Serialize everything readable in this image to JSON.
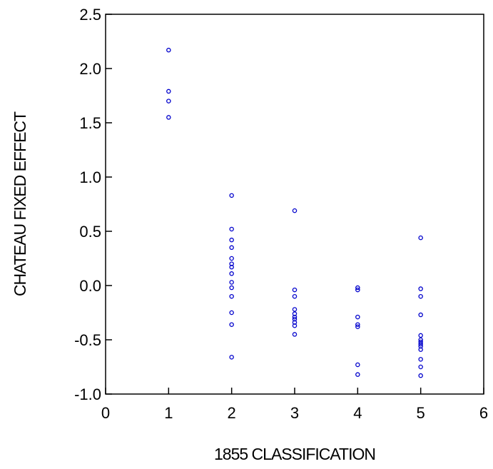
{
  "chart_data": {
    "type": "scatter",
    "title": "",
    "xlabel": "1855 CLASSIFICATION",
    "ylabel": "CHATEAU FIXED EFFECT",
    "xlim": [
      0,
      6
    ],
    "ylim": [
      -1.0,
      2.5
    ],
    "x_ticks": [
      "0",
      "1",
      "2",
      "3",
      "4",
      "5",
      "6"
    ],
    "y_ticks": [
      "-1.0",
      "-0.5",
      "0.0",
      "0.5",
      "1.0",
      "1.5",
      "2.0",
      "2.5"
    ],
    "grid": false,
    "legend": "none",
    "marker": "open-circle",
    "marker_color": "#0000cc",
    "points": [
      {
        "x": 1,
        "y": 2.17
      },
      {
        "x": 1,
        "y": 1.79
      },
      {
        "x": 1,
        "y": 1.7
      },
      {
        "x": 1,
        "y": 1.55
      },
      {
        "x": 2,
        "y": 0.83
      },
      {
        "x": 2,
        "y": 0.52
      },
      {
        "x": 2,
        "y": 0.42
      },
      {
        "x": 2,
        "y": 0.35
      },
      {
        "x": 2,
        "y": 0.25
      },
      {
        "x": 2,
        "y": 0.2
      },
      {
        "x": 2,
        "y": 0.17
      },
      {
        "x": 2,
        "y": 0.11
      },
      {
        "x": 2,
        "y": 0.03
      },
      {
        "x": 2,
        "y": -0.02
      },
      {
        "x": 2,
        "y": -0.1
      },
      {
        "x": 2,
        "y": -0.25
      },
      {
        "x": 2,
        "y": -0.36
      },
      {
        "x": 2,
        "y": -0.66
      },
      {
        "x": 3,
        "y": 0.69
      },
      {
        "x": 3,
        "y": -0.04
      },
      {
        "x": 3,
        "y": -0.1
      },
      {
        "x": 3,
        "y": -0.22
      },
      {
        "x": 3,
        "y": -0.26
      },
      {
        "x": 3,
        "y": -0.29
      },
      {
        "x": 3,
        "y": -0.31
      },
      {
        "x": 3,
        "y": -0.34
      },
      {
        "x": 3,
        "y": -0.37
      },
      {
        "x": 3,
        "y": -0.45
      },
      {
        "x": 4,
        "y": -0.02
      },
      {
        "x": 4,
        "y": -0.04
      },
      {
        "x": 4,
        "y": -0.29
      },
      {
        "x": 4,
        "y": -0.36
      },
      {
        "x": 4,
        "y": -0.38
      },
      {
        "x": 4,
        "y": -0.73
      },
      {
        "x": 4,
        "y": -0.82
      },
      {
        "x": 5,
        "y": 0.44
      },
      {
        "x": 5,
        "y": -0.03
      },
      {
        "x": 5,
        "y": -0.1
      },
      {
        "x": 5,
        "y": -0.27
      },
      {
        "x": 5,
        "y": -0.46
      },
      {
        "x": 5,
        "y": -0.5
      },
      {
        "x": 5,
        "y": -0.52
      },
      {
        "x": 5,
        "y": -0.54
      },
      {
        "x": 5,
        "y": -0.56
      },
      {
        "x": 5,
        "y": -0.59
      },
      {
        "x": 5,
        "y": -0.68
      },
      {
        "x": 5,
        "y": -0.75
      },
      {
        "x": 5,
        "y": -0.83
      }
    ]
  }
}
